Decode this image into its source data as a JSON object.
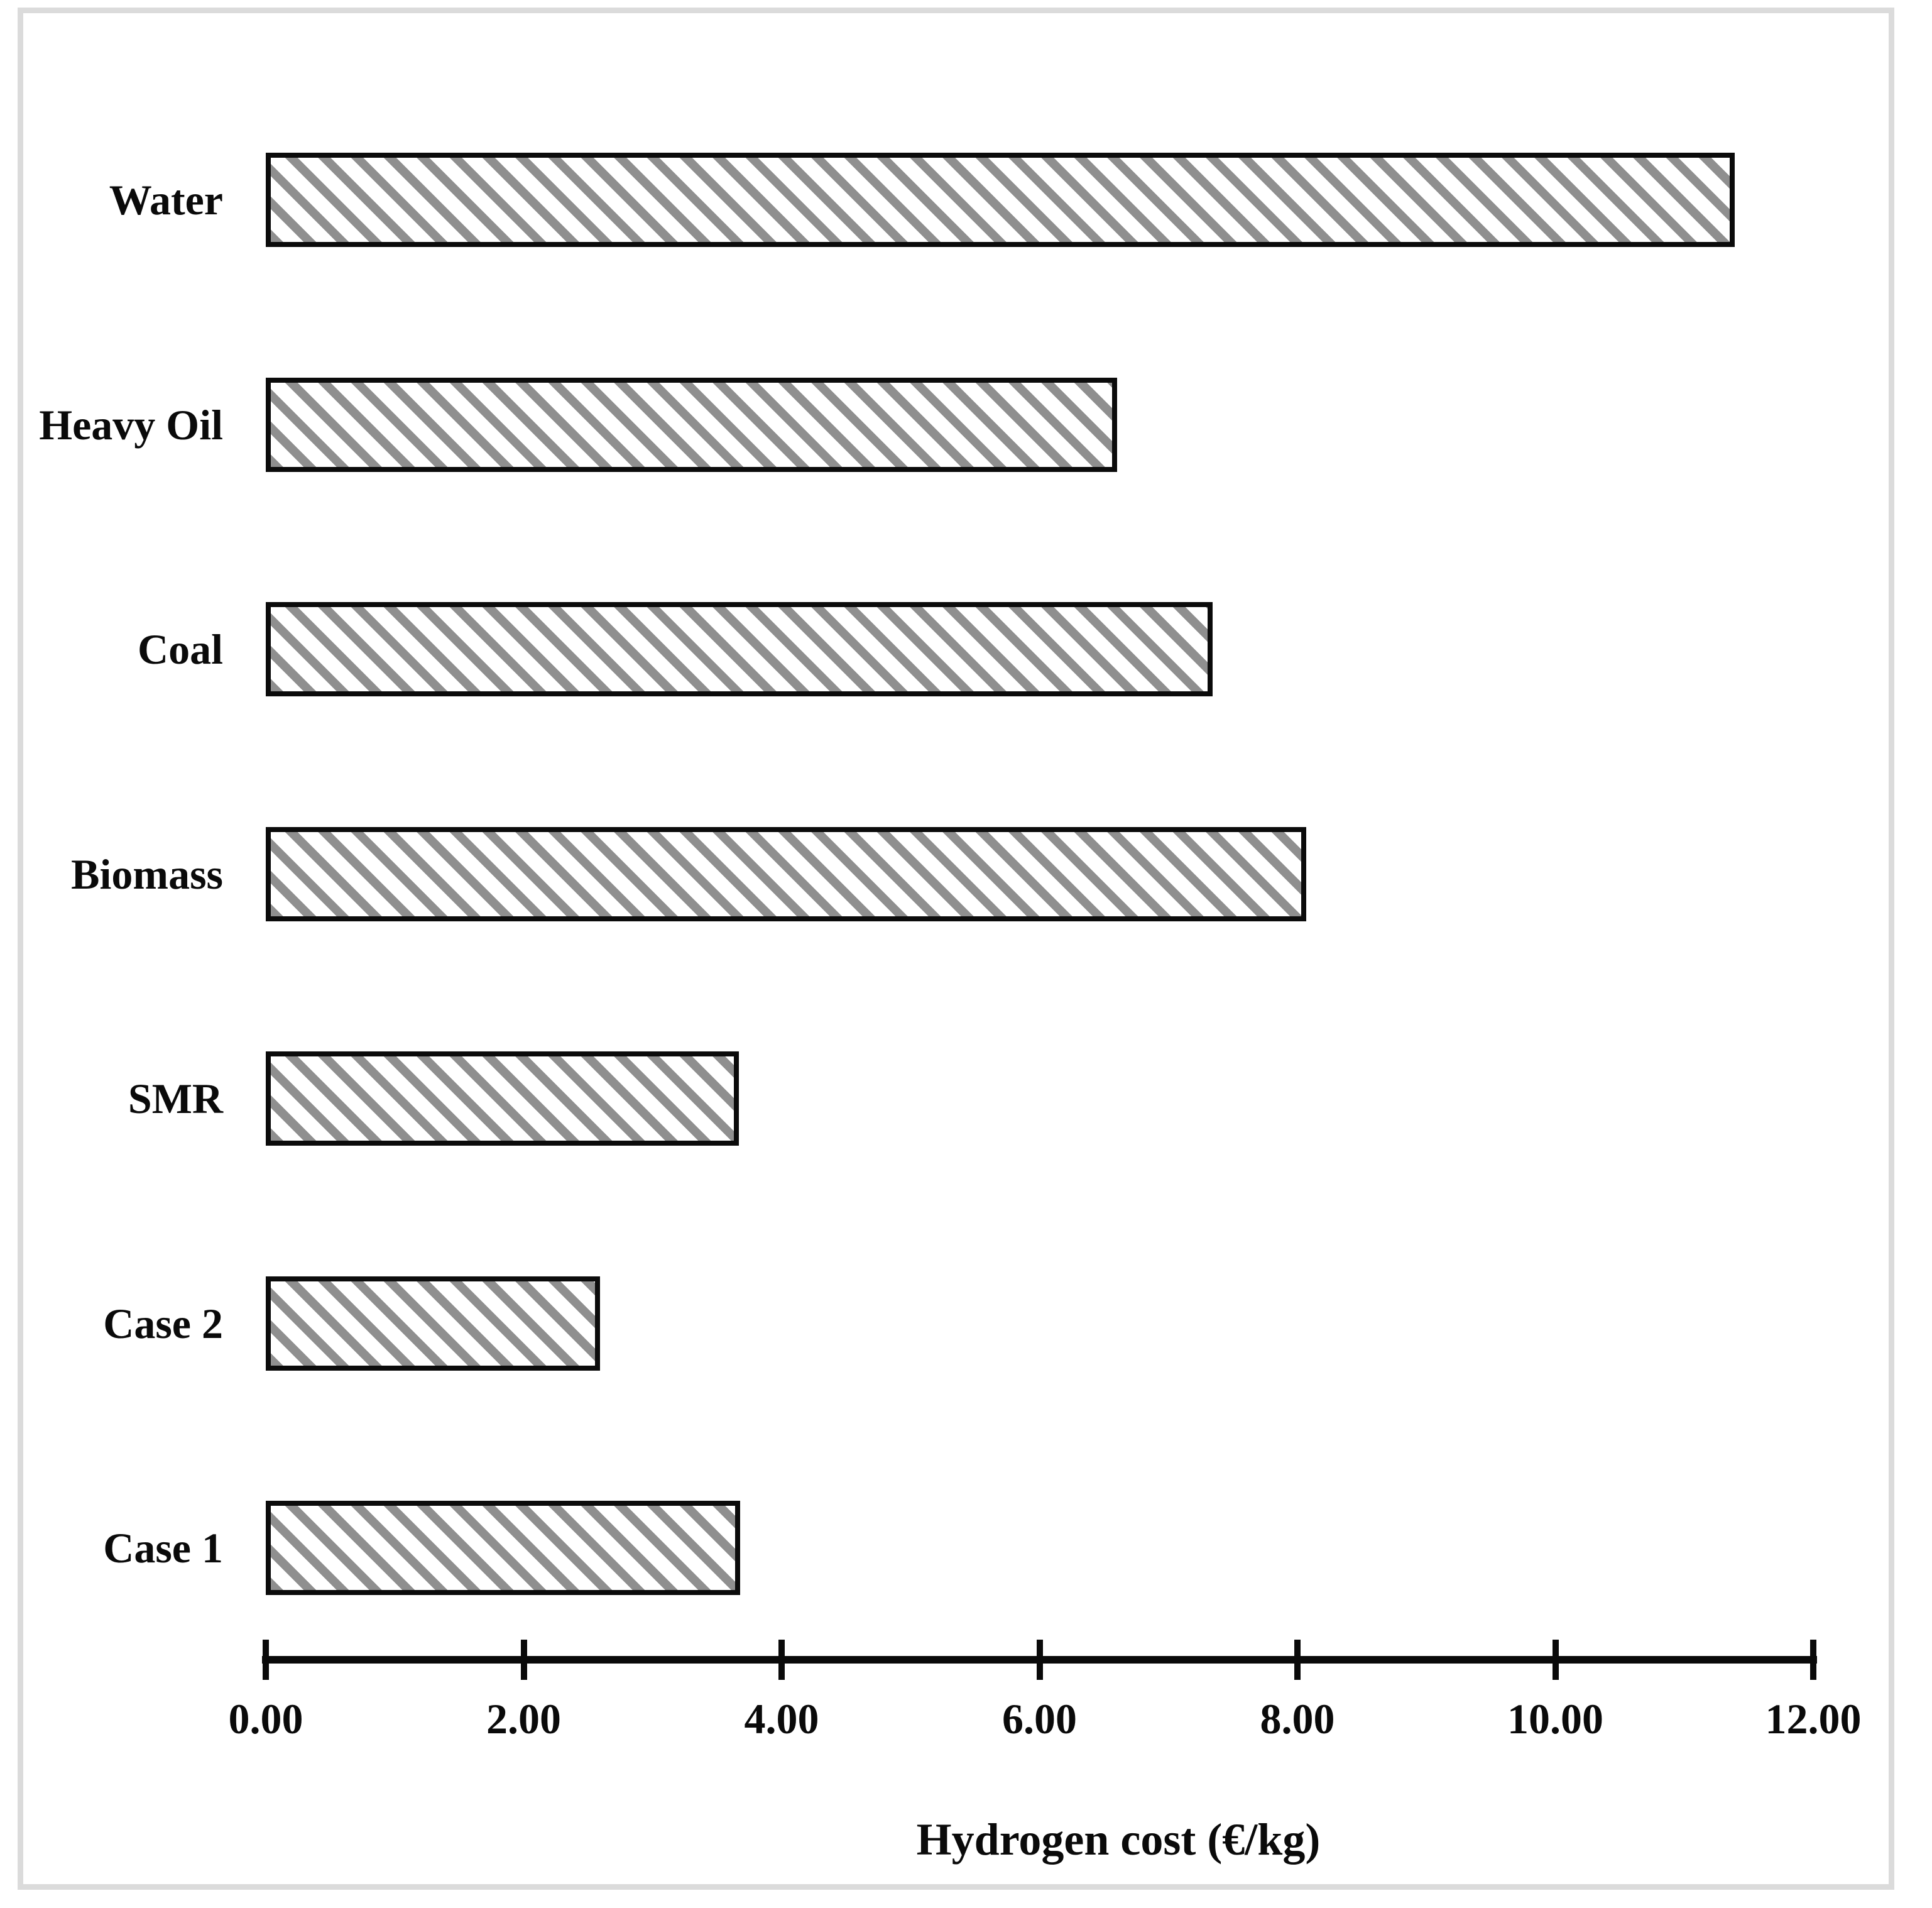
{
  "figure": {
    "xlabel": "Hydrogen cost (€/kg)"
  },
  "chart_data": {
    "type": "bar",
    "orientation": "horizontal",
    "title": "",
    "xlabel": "Hydrogen cost (€/kg)",
    "ylabel": "",
    "categories": [
      "Water",
      "Heavy Oil",
      "Coal",
      "Biomass",
      "SMR",
      "Case 2",
      "Case 1"
    ],
    "values": [
      11.39,
      6.6,
      7.34,
      8.07,
      3.67,
      2.59,
      3.68
    ],
    "xlim": [
      0,
      12
    ],
    "xticks": [
      0,
      2,
      4,
      6,
      8,
      10,
      12
    ],
    "xtick_labels": [
      "0.00",
      "2.00",
      "4.00",
      "6.00",
      "8.00",
      "10.00",
      "12.00"
    ],
    "grid": false,
    "legend_position": "none",
    "bar_style": {
      "fill": "diagonal-hatch",
      "hatch_color": "#8f8f8f",
      "bar_background": "#ffffff",
      "border_color": "#0b0b0b",
      "axis_color": "#0a0a0a",
      "frame_color": "#dbdbdb"
    }
  }
}
